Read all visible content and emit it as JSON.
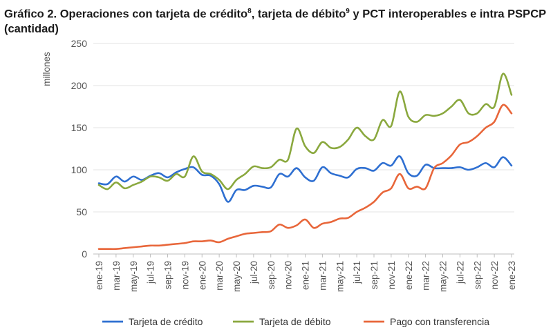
{
  "title": {
    "part1": "Gráfico 2. Operaciones con tarjeta de crédito",
    "sup1": "8",
    "part2": ", tarjeta de débito",
    "sup2": "9",
    "part3": " y PCT interoperables e intra PSPCP (cantidad)"
  },
  "chart_data": {
    "type": "line",
    "ylabel": "millones",
    "ylim": [
      0,
      250
    ],
    "yticks": [
      0,
      50,
      100,
      150,
      200,
      250
    ],
    "xtick_labels": [
      "ene-19",
      "mar-19",
      "may-19",
      "jul-19",
      "sep-19",
      "nov-19",
      "ene-20",
      "mar-20",
      "may-20",
      "jul-20",
      "sep-20",
      "nov-20",
      "ene-21",
      "mar-21",
      "may-21",
      "jul-21",
      "sep-21",
      "nov-21",
      "ene-22",
      "mar-22",
      "may-22",
      "jul-22",
      "sep-22",
      "nov-22",
      "ene-23"
    ],
    "x": [
      "ene-19",
      "feb-19",
      "mar-19",
      "abr-19",
      "may-19",
      "jun-19",
      "jul-19",
      "ago-19",
      "sep-19",
      "oct-19",
      "nov-19",
      "dic-19",
      "ene-20",
      "feb-20",
      "mar-20",
      "abr-20",
      "may-20",
      "jun-20",
      "jul-20",
      "ago-20",
      "sep-20",
      "oct-20",
      "nov-20",
      "dic-20",
      "ene-21",
      "feb-21",
      "mar-21",
      "abr-21",
      "may-21",
      "jun-21",
      "jul-21",
      "ago-21",
      "sep-21",
      "oct-21",
      "nov-21",
      "dic-21",
      "ene-22",
      "feb-22",
      "mar-22",
      "abr-22",
      "may-22",
      "jun-22",
      "jul-22",
      "ago-22",
      "sep-22",
      "oct-22",
      "nov-22",
      "dic-22",
      "ene-23"
    ],
    "grid": true,
    "legend_position": "bottom",
    "series": [
      {
        "name": "Tarjeta de crédito",
        "color": "#2e6fd1",
        "values": [
          84,
          83,
          92,
          86,
          92,
          88,
          93,
          96,
          91,
          97,
          101,
          103,
          94,
          93,
          83,
          62,
          76,
          76,
          81,
          80,
          79,
          95,
          92,
          102,
          91,
          87,
          103,
          96,
          93,
          91,
          101,
          102,
          99,
          108,
          105,
          116,
          96,
          93,
          106,
          102,
          102,
          102,
          103,
          100,
          103,
          108,
          103,
          115,
          105
        ]
      },
      {
        "name": "Tarjeta de débito",
        "color": "#8aa83e",
        "values": [
          82,
          77,
          85,
          78,
          82,
          86,
          92,
          91,
          87,
          95,
          92,
          116,
          98,
          95,
          88,
          77,
          88,
          95,
          104,
          102,
          103,
          112,
          112,
          149,
          128,
          120,
          133,
          126,
          127,
          136,
          150,
          140,
          136,
          159,
          152,
          193,
          163,
          157,
          165,
          164,
          167,
          175,
          183,
          167,
          167,
          178,
          175,
          214,
          189
        ]
      },
      {
        "name": "Pago con transferencia",
        "color": "#e8663a",
        "values": [
          6,
          6,
          6,
          7,
          8,
          9,
          10,
          10,
          11,
          12,
          13,
          15,
          15,
          16,
          14,
          18,
          21,
          24,
          25,
          26,
          27,
          35,
          31,
          34,
          41,
          31,
          36,
          38,
          42,
          43,
          50,
          55,
          62,
          73,
          78,
          95,
          78,
          80,
          78,
          102,
          108,
          117,
          130,
          133,
          140,
          150,
          157,
          177,
          167
        ]
      }
    ]
  }
}
